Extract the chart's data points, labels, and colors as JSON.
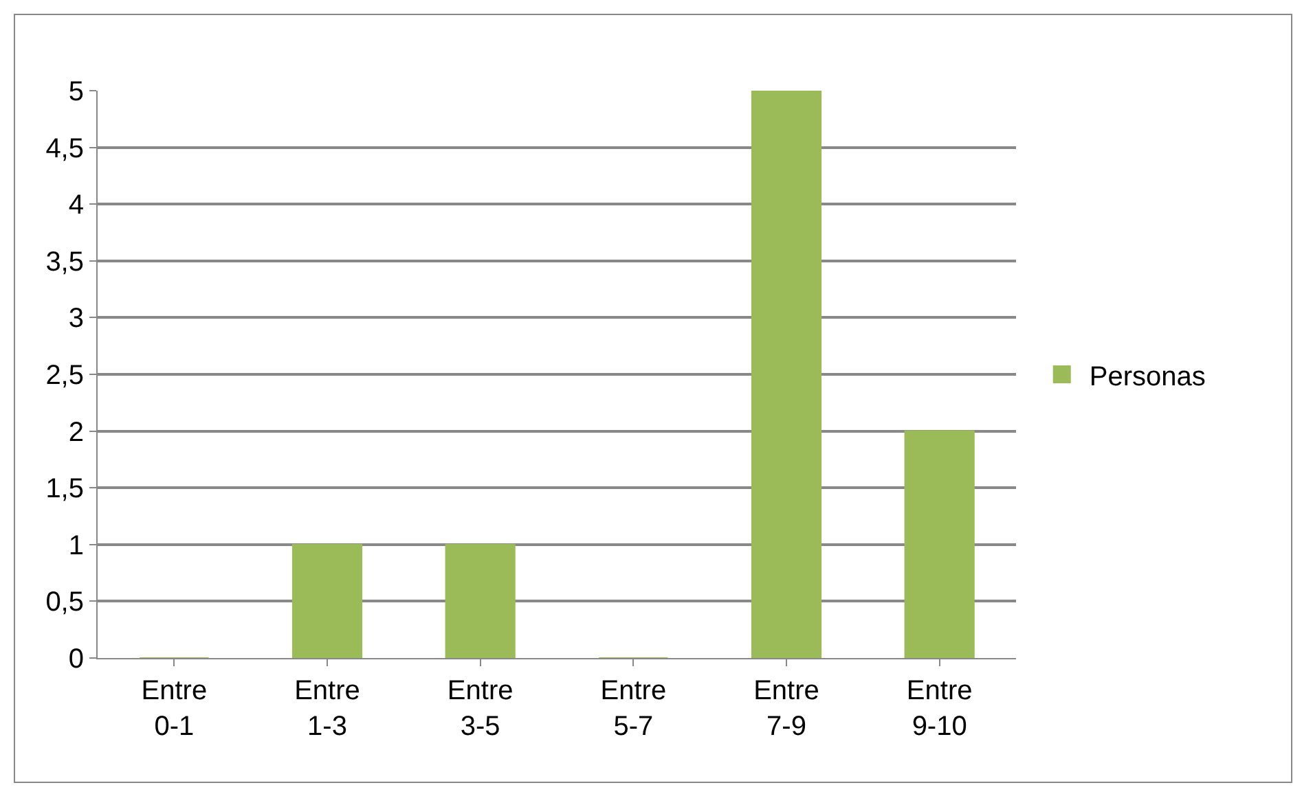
{
  "chart_data": {
    "type": "bar",
    "categories": [
      "Entre 0-1",
      "Entre 1-3",
      "Entre 3-5",
      "Entre 5-7",
      "Entre 7-9",
      "Entre 9-10"
    ],
    "series": [
      {
        "name": "Personas",
        "color": "#9bbb59",
        "values": [
          0,
          1,
          1,
          0,
          5,
          2
        ]
      }
    ],
    "ylim": [
      0,
      5
    ],
    "yticks": [
      0,
      {
        "value": 0.5,
        "label": "0,5"
      },
      1,
      {
        "value": 1.5,
        "label": "1,5"
      },
      2,
      {
        "value": 2.5,
        "label": "2,5"
      },
      3,
      {
        "value": 3.5,
        "label": "3,5"
      },
      4,
      {
        "value": 4.5,
        "label": "4,5"
      },
      5
    ],
    "grid": "y",
    "legend": "right"
  }
}
